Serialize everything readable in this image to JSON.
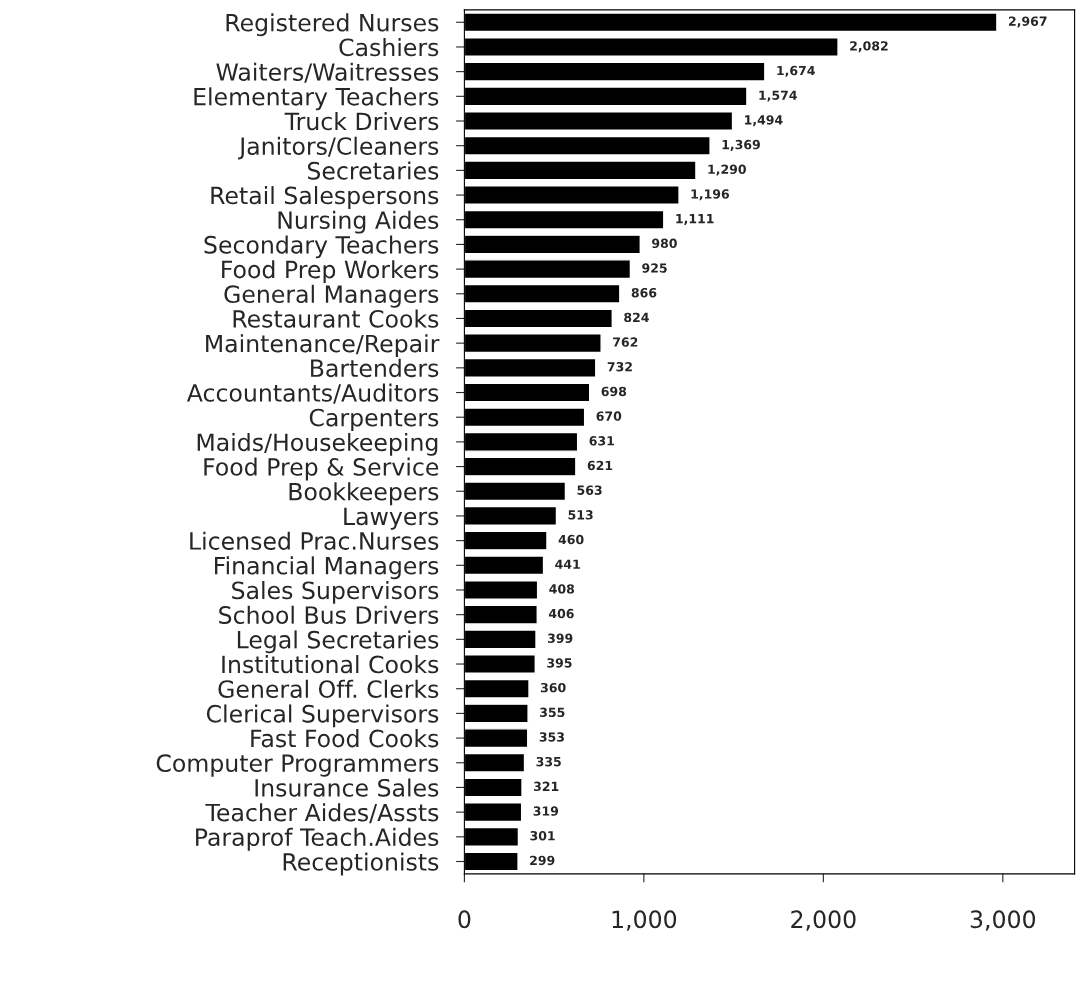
{
  "chart_data": {
    "type": "bar",
    "orientation": "horizontal",
    "categories": [
      "Registered Nurses",
      "Cashiers",
      "Waiters/Waitresses",
      "Elementary Teachers",
      "Truck Drivers",
      "Janitors/Cleaners",
      "Secretaries",
      "Retail Salespersons",
      "Nursing Aides",
      "Secondary Teachers",
      "Food Prep Workers",
      "General Managers",
      "Restaurant Cooks",
      "Maintenance/Repair",
      "Bartenders",
      "Accountants/Auditors",
      "Carpenters",
      "Maids/Housekeeping",
      "Food Prep & Service",
      "Bookkeepers",
      "Lawyers",
      "Licensed Prac.Nurses",
      "Financial Managers",
      "Sales Supervisors",
      "School Bus Drivers",
      "Legal Secretaries",
      "Institutional Cooks",
      "General Off. Clerks",
      "Clerical Supervisors",
      "Fast Food Cooks",
      "Computer Programmers",
      "Insurance Sales",
      "Teacher Aides/Assts",
      "Paraprof Teach.Aides",
      "Receptionists"
    ],
    "values": [
      2967,
      2082,
      1674,
      1574,
      1494,
      1369,
      1290,
      1196,
      1111,
      980,
      925,
      866,
      824,
      762,
      732,
      698,
      670,
      631,
      621,
      563,
      513,
      460,
      441,
      408,
      406,
      399,
      395,
      360,
      355,
      353,
      335,
      321,
      319,
      301,
      299
    ],
    "value_labels": [
      "2,967",
      "2,082",
      "1,674",
      "1,574",
      "1,494",
      "1,369",
      "1,290",
      "1,196",
      "1,111",
      "980",
      "925",
      "866",
      "824",
      "762",
      "732",
      "698",
      "670",
      "631",
      "621",
      "563",
      "513",
      "460",
      "441",
      "408",
      "406",
      "399",
      "395",
      "360",
      "355",
      "353",
      "335",
      "321",
      "319",
      "301",
      "299"
    ],
    "color": "#000000",
    "xlim": [
      0,
      3400
    ],
    "xticks": [
      0,
      {
        "value": 1000,
        "label": "1,000"
      },
      {
        "value": 2000,
        "label": "2,000"
      },
      {
        "value": 3000,
        "label": "3,000"
      }
    ],
    "grid": false
  }
}
